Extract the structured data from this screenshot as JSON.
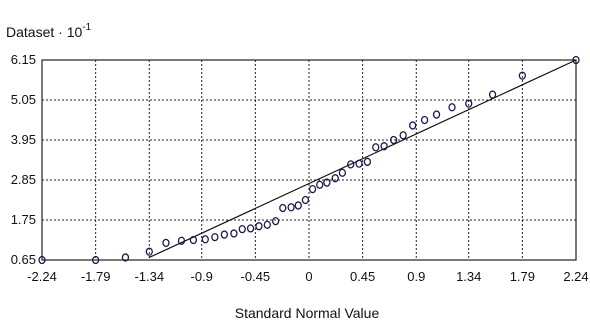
{
  "chart_data": {
    "type": "scatter",
    "title": "",
    "ylabel": "Dataset · 10",
    "ylabel_exponent": "-1",
    "xlabel": "Standard Normal Value",
    "xlim": [
      -2.24,
      2.24
    ],
    "ylim": [
      0.65,
      6.15
    ],
    "x_ticks": [
      -2.24,
      -1.79,
      -1.34,
      -0.9,
      -0.45,
      0,
      0.45,
      0.9,
      1.34,
      1.79,
      2.24
    ],
    "x_tick_labels": [
      "-2.24",
      "-1.79",
      "-1.34",
      "-0.9",
      "-0.45",
      "0",
      "0.45",
      "0.9",
      "1.34",
      "1.79",
      "2.24"
    ],
    "y_ticks": [
      0.65,
      1.75,
      2.85,
      3.95,
      5.05,
      6.15
    ],
    "y_tick_labels": [
      "0.65",
      "1.75",
      "2.85",
      "3.95",
      "5.05",
      "6.15"
    ],
    "grid": true,
    "fit_line": {
      "x": [
        -1.34,
        2.24
      ],
      "y": [
        0.72,
        6.15
      ]
    },
    "points": [
      {
        "x": -2.24,
        "y": 0.65
      },
      {
        "x": -1.79,
        "y": 0.65
      },
      {
        "x": -1.54,
        "y": 0.72
      },
      {
        "x": -1.34,
        "y": 0.88
      },
      {
        "x": -1.2,
        "y": 1.12
      },
      {
        "x": -1.07,
        "y": 1.18
      },
      {
        "x": -0.97,
        "y": 1.2
      },
      {
        "x": -0.87,
        "y": 1.22
      },
      {
        "x": -0.79,
        "y": 1.28
      },
      {
        "x": -0.71,
        "y": 1.35
      },
      {
        "x": -0.63,
        "y": 1.38
      },
      {
        "x": -0.56,
        "y": 1.5
      },
      {
        "x": -0.49,
        "y": 1.52
      },
      {
        "x": -0.42,
        "y": 1.58
      },
      {
        "x": -0.35,
        "y": 1.62
      },
      {
        "x": -0.28,
        "y": 1.72
      },
      {
        "x": -0.22,
        "y": 2.08
      },
      {
        "x": -0.15,
        "y": 2.1
      },
      {
        "x": -0.09,
        "y": 2.15
      },
      {
        "x": -0.03,
        "y": 2.3
      },
      {
        "x": 0.03,
        "y": 2.6
      },
      {
        "x": 0.09,
        "y": 2.72
      },
      {
        "x": 0.15,
        "y": 2.78
      },
      {
        "x": 0.22,
        "y": 2.9
      },
      {
        "x": 0.28,
        "y": 3.05
      },
      {
        "x": 0.35,
        "y": 3.28
      },
      {
        "x": 0.42,
        "y": 3.3
      },
      {
        "x": 0.49,
        "y": 3.35
      },
      {
        "x": 0.56,
        "y": 3.75
      },
      {
        "x": 0.63,
        "y": 3.78
      },
      {
        "x": 0.71,
        "y": 3.95
      },
      {
        "x": 0.79,
        "y": 4.08
      },
      {
        "x": 0.87,
        "y": 4.35
      },
      {
        "x": 0.97,
        "y": 4.5
      },
      {
        "x": 1.07,
        "y": 4.65
      },
      {
        "x": 1.2,
        "y": 4.85
      },
      {
        "x": 1.34,
        "y": 4.95
      },
      {
        "x": 1.54,
        "y": 5.2
      },
      {
        "x": 1.79,
        "y": 5.72
      },
      {
        "x": 2.24,
        "y": 6.15
      }
    ]
  }
}
